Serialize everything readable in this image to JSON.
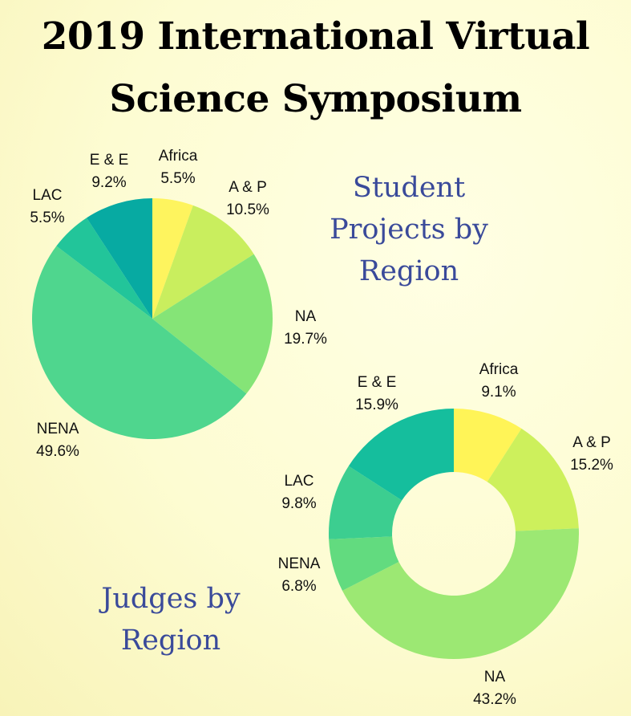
{
  "title_line1": "2019 International Virtual",
  "title_line2": "Science Symposium",
  "chart_data": [
    {
      "type": "pie",
      "title": "Student Projects by Region",
      "title_lines": [
        "Student",
        "Projects by",
        "Region"
      ],
      "slices": [
        {
          "label": "Africa",
          "value": 5.5,
          "value_text": "5.5%",
          "color": "#fef45e"
        },
        {
          "label": "A & P",
          "value": 10.5,
          "value_text": "10.5%",
          "color": "#c9ee5e"
        },
        {
          "label": "NA",
          "value": 19.7,
          "value_text": "19.7%",
          "color": "#85e477"
        },
        {
          "label": "NENA",
          "value": 49.6,
          "value_text": "49.6%",
          "color": "#4fd68e"
        },
        {
          "label": "LAC",
          "value": 5.5,
          "value_text": "5.5%",
          "color": "#22c59a"
        },
        {
          "label": "E & E",
          "value": 9.2,
          "value_text": "9.2%",
          "color": "#07aaa2"
        }
      ]
    },
    {
      "type": "donut",
      "title": "Judges by Region",
      "title_lines": [
        "Judges by",
        "Region"
      ],
      "slices": [
        {
          "label": "Africa",
          "value": 9.1,
          "value_text": "9.1%",
          "color": "#fff457"
        },
        {
          "label": "A & P",
          "value": 15.2,
          "value_text": "15.2%",
          "color": "#cdf05c"
        },
        {
          "label": "NA",
          "value": 43.2,
          "value_text": "43.2%",
          "color": "#9ce873"
        },
        {
          "label": "NENA",
          "value": 6.8,
          "value_text": "6.8%",
          "color": "#62db7f"
        },
        {
          "label": "LAC",
          "value": 9.8,
          "value_text": "9.8%",
          "color": "#3cce90"
        },
        {
          "label": "E & E",
          "value": 15.9,
          "value_text": "15.9%",
          "color": "#15be9d"
        }
      ]
    }
  ]
}
